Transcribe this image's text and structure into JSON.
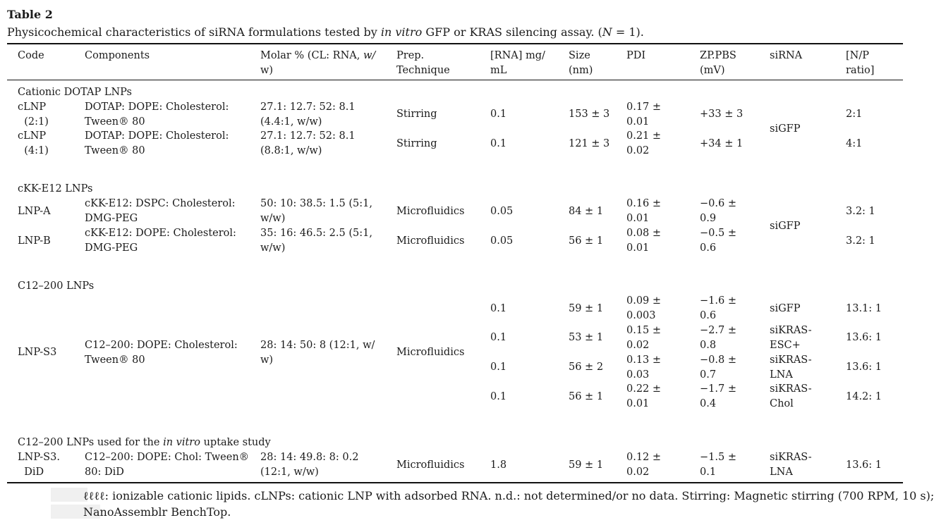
{
  "table_label": "Table 2",
  "caption_pre": "Physicochemical characteristics of siRNA formulations tested by ",
  "caption_em": "in vitro",
  "caption_post": " GFP or KRAS silencing assay. (",
  "caption_n": "N",
  "caption_end": " = 1).",
  "headers": {
    "code": "Code",
    "components": "Components",
    "molar": "Molar % (CL: RNA, ",
    "molar_em": "w/",
    "molar_line2": "w)",
    "prep": "Prep.\nTechnique",
    "rna": "[RNA] mg/\nmL",
    "size": "Size\n(nm)",
    "pdi": "PDI",
    "zp": "ZP.PBS\n(mV)",
    "sirna": "siRNA",
    "np": "[N/P\nratio]"
  },
  "sections": [
    {
      "title": "Cationic DOTAP LNPs",
      "rows": [
        {
          "code": "cLNP\n  (2:1)",
          "components": "DOTAP: DOPE: Cholesterol:\nTween® 80",
          "molar": "27.1: 12.7: 52: 8.1\n(4.4:1, w/w)",
          "prep": "Stirring",
          "rna": "0.1",
          "size": "153 ± 3",
          "pdi": "0.17 ±\n0.01",
          "zp": "+33 ± 3",
          "np": "2:1"
        },
        {
          "code": "cLNP\n  (4:1)",
          "components": "DOTAP: DOPE: Cholesterol:\nTween® 80",
          "molar": "27.1: 12.7: 52: 8.1\n(8.8:1, w/w)",
          "prep": "Stirring",
          "rna": "0.1",
          "size": "121 ± 3",
          "pdi": "0.21 ±\n0.02",
          "zp": "+34 ± 1",
          "np": "4:1"
        }
      ],
      "sirna": "siGFP"
    },
    {
      "title": "cKK-E12 LNPs",
      "rows": [
        {
          "code": "LNP-A",
          "components": "cKK-E12: DSPC: Cholesterol:\nDMG-PEG",
          "molar": "50: 10: 38.5: 1.5 (5:1,\nw/w)",
          "prep": "Microfluidics",
          "rna": "0.05",
          "size": "84 ± 1",
          "pdi": "0.16 ±\n0.01",
          "zp": "−0.6 ±\n0.9",
          "np": "3.2: 1"
        },
        {
          "code": "LNP-B",
          "components": "cKK-E12: DOPE: Cholesterol:\nDMG-PEG",
          "molar": "35: 16: 46.5: 2.5 (5:1,\nw/w)",
          "prep": "Microfluidics",
          "rna": "0.05",
          "size": "56 ± 1",
          "pdi": "0.08 ±\n0.01",
          "zp": "−0.5 ±\n0.6",
          "np": "3.2: 1"
        }
      ],
      "sirna": "siGFP"
    },
    {
      "title": "C12–200 LNPs",
      "code": "LNP-S3",
      "components": "C12–200: DOPE: Cholesterol:\nTween® 80",
      "molar": "28: 14: 50: 8 (12:1, w/\nw)",
      "prep": "Microfluidics",
      "rows": [
        {
          "rna": "0.1",
          "size": "59 ± 1",
          "pdi": "0.09 ±\n0.003",
          "zp": "−1.6 ±\n0.6",
          "sirna": "siGFP",
          "np": "13.1: 1"
        },
        {
          "rna": "0.1",
          "size": "53 ± 1",
          "pdi": "0.15 ±\n0.02",
          "zp": "−2.7 ±\n0.8",
          "sirna": "siKRAS-\nESC+",
          "np": "13.6: 1"
        },
        {
          "rna": "0.1",
          "size": "56 ± 2",
          "pdi": "0.13 ±\n0.03",
          "zp": "−0.8 ±\n0.7",
          "sirna": "siKRAS-\nLNA",
          "np": "13.6: 1"
        },
        {
          "rna": "0.1",
          "size": "56 ± 1",
          "pdi": "0.22 ±\n0.01",
          "zp": "−1.7 ±\n0.4",
          "sirna": "siKRAS-\nChol",
          "np": "14.2: 1"
        }
      ]
    },
    {
      "title_pre": "C12–200 LNPs used for the ",
      "title_em": "in vitro",
      "title_post": " uptake study",
      "rows": [
        {
          "code": "LNP-S3.\n  DiD",
          "components": "C12–200: DOPE: Chol: Tween®\n80: DiD",
          "molar": "28: 14: 49.8: 8: 0.2\n(12:1, w/w)",
          "prep": "Microfluidics",
          "rna": "1.8",
          "size": "59 ± 1",
          "pdi": "0.12 ±\n0.02",
          "zp": "−1.5 ±\n0.1",
          "sirna": "siKRAS-\nLNA",
          "np": "13.6: 1"
        }
      ]
    }
  ],
  "footnote_line1": "ℓℓℓℓ: ionizable cationic lipids. cLNPs: cationic LNP with adsorbed RNA. n.d.: not determined/or no data. Stirring: Magnetic stirring (700 RPM, 10 s);",
  "footnote_line2": "NanoAssemblr BenchTop."
}
